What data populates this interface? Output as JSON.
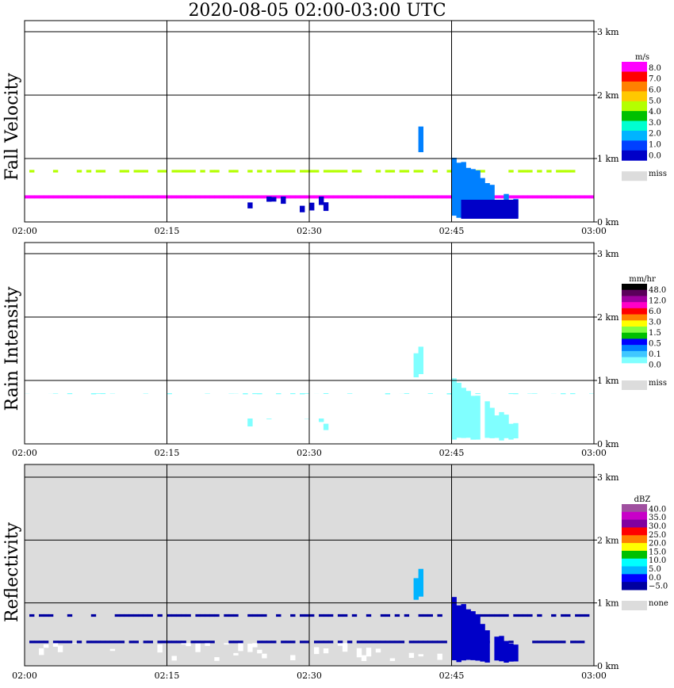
{
  "title": "2020-08-05   02:00-03:00 UTC",
  "x_ticks": [
    "02:00",
    "02:15",
    "02:30",
    "02:45",
    "03:00"
  ],
  "y_ticks": [
    "0 km",
    "1 km",
    "2 km",
    "3 km"
  ],
  "chart_data": [
    {
      "type": "heatmap",
      "ylabel": "Fall Velocity",
      "xlim": [
        "02:00",
        "03:00"
      ],
      "ylim_km": [
        0,
        3.1
      ],
      "grid": true,
      "background": "#ffffff",
      "colorbar": {
        "unit": "m/s",
        "labels": [
          "8.0",
          "7.0",
          "6.0",
          "5.0",
          "4.0",
          "3.0",
          "2.0",
          "1.0",
          "0.0"
        ],
        "colors": [
          "#ff00ff",
          "#ff0000",
          "#ff8000",
          "#ffc800",
          "#b4ff00",
          "#00c000",
          "#00ffd0",
          "#00b4ff",
          "#0040ff",
          "#0000c8"
        ],
        "miss_label": "miss",
        "miss_color": "#dcdcdc"
      },
      "layers": [
        {
          "t0": "02:00",
          "t1": "03:00",
          "h0": 0.78,
          "h1": 0.82,
          "color": "#b4ff00",
          "pattern": "dashed"
        },
        {
          "t0": "02:00",
          "t1": "03:00",
          "h0": 0.37,
          "h1": 0.42,
          "color": "#ff00ff",
          "pattern": "solid"
        },
        {
          "t0": "02:23",
          "t1": "02:32",
          "h0": 0.15,
          "h1": 0.4,
          "color": "#0000c8",
          "pattern": "sparse"
        },
        {
          "t0": "02:41",
          "t1": "02:42",
          "h0": 1.05,
          "h1": 1.55,
          "color": "#0080ff",
          "pattern": "column"
        },
        {
          "t0": "02:45",
          "t1": "02:52",
          "h0": 0.05,
          "h1": 1.1,
          "color": "#0080ff",
          "pattern": "fallstreak"
        },
        {
          "t0": "02:46",
          "t1": "02:52",
          "h0": 0.05,
          "h1": 0.35,
          "color": "#0000c8",
          "pattern": "solid"
        }
      ]
    },
    {
      "type": "heatmap",
      "ylabel": "Rain Intensity",
      "xlim": [
        "02:00",
        "03:00"
      ],
      "ylim_km": [
        0,
        3.1
      ],
      "grid": true,
      "background": "#ffffff",
      "colorbar": {
        "unit": "mm/hr",
        "labels": [
          "48.0",
          "12.0",
          "6.0",
          "3.0",
          "1.5",
          "0.5",
          "0.1",
          "0.0"
        ],
        "colors": [
          "#000000",
          "#5a005a",
          "#a000a0",
          "#ff00c8",
          "#ff0000",
          "#ff8000",
          "#ffff00",
          "#80ff40",
          "#00c000",
          "#0000ff",
          "#0080ff",
          "#40c8ff",
          "#80ffff",
          "#ffffff"
        ],
        "miss_label": "miss",
        "miss_color": "#dcdcdc"
      },
      "layers": [
        {
          "t0": "02:00",
          "t1": "03:00",
          "h0": 0.78,
          "h1": 0.8,
          "color": "#80ffff",
          "pattern": "sparse"
        },
        {
          "t0": "02:23",
          "t1": "02:32",
          "h0": 0.15,
          "h1": 0.4,
          "color": "#80ffff",
          "pattern": "sparse"
        },
        {
          "t0": "02:41",
          "t1": "02:42",
          "h0": 1.05,
          "h1": 1.55,
          "color": "#80ffff",
          "pattern": "column"
        },
        {
          "t0": "02:45",
          "t1": "02:52",
          "h0": 0.05,
          "h1": 1.1,
          "color": "#80ffff",
          "pattern": "fallstreak"
        }
      ]
    },
    {
      "type": "heatmap",
      "ylabel": "Reflectivity",
      "xlim": [
        "02:00",
        "03:00"
      ],
      "ylim_km": [
        0,
        3.1
      ],
      "grid": true,
      "background": "#dcdcdc",
      "colorbar": {
        "unit": "dBZ",
        "labels": [
          "40.0",
          "35.0",
          "30.0",
          "25.0",
          "20.0",
          "15.0",
          "10.0",
          "5.0",
          "0.0",
          "−5.0"
        ],
        "colors": [
          "#a050a0",
          "#c800c8",
          "#8000a0",
          "#ff0000",
          "#ff8000",
          "#ffff00",
          "#00c000",
          "#00ffff",
          "#00b4ff",
          "#0000ff",
          "#0000a0"
        ],
        "miss_label": "none",
        "miss_color": "#dcdcdc"
      },
      "layers": [
        {
          "t0": "02:00",
          "t1": "03:00",
          "h0": 0.78,
          "h1": 0.82,
          "color": "#0000a0",
          "pattern": "dashed"
        },
        {
          "t0": "02:00",
          "t1": "03:00",
          "h0": 0.36,
          "h1": 0.4,
          "color": "#0000a0",
          "pattern": "dotted"
        },
        {
          "t0": "02:00",
          "t1": "02:52",
          "h0": 0.05,
          "h1": 0.36,
          "color": "#ffffff",
          "pattern": "sparse"
        },
        {
          "t0": "02:41",
          "t1": "02:42",
          "h0": 1.05,
          "h1": 1.55,
          "color": "#00b4ff",
          "pattern": "column"
        },
        {
          "t0": "02:45",
          "t1": "02:52",
          "h0": 0.05,
          "h1": 1.1,
          "color": "#0000c8",
          "pattern": "fallstreak"
        }
      ]
    }
  ]
}
